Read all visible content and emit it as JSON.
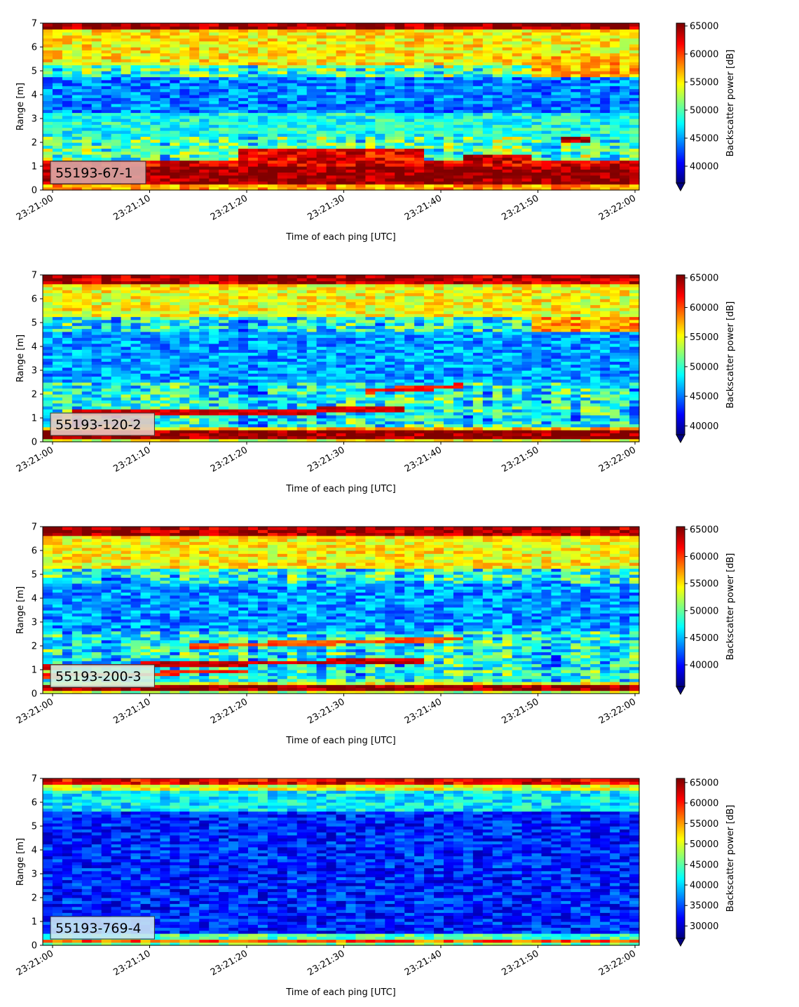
{
  "chart_data": [
    {
      "type": "heatmap",
      "x_ticks": [
        "23:21:00",
        "23:21:10",
        "23:21:20",
        "23:21:30",
        "23:21:40",
        "23:21:50",
        "23:22:00"
      ],
      "y_ticks": [
        "0",
        "1",
        "2",
        "3",
        "4",
        "5",
        "6",
        "7"
      ],
      "xlabel": "Time of each ping [UTC]",
      "ylabel": "Range [m]",
      "ylim": [
        0,
        7
      ],
      "annotation": "55193-67-1",
      "annotation_bg": "#dba7a5",
      "colorbar": {
        "label": "Backscatter power [dB]",
        "ticks": [
          "40000",
          "45000",
          "50000",
          "55000",
          "60000",
          "65000"
        ],
        "min": 37000,
        "max": 65500,
        "colormap": "jet",
        "extend": "min"
      },
      "features": [
        {
          "kind": "band",
          "y0": 0.0,
          "y1": 0.25,
          "t0": 0,
          "t1": 61,
          "v": 0.72
        },
        {
          "kind": "band",
          "y0": 0.25,
          "y1": 1.05,
          "t0": 0,
          "t1": 61,
          "v": 0.99
        },
        {
          "kind": "band",
          "y0": 1.05,
          "y1": 1.3,
          "t0": 0,
          "t1": 61,
          "v": 0.9
        },
        {
          "kind": "band",
          "y0": 1.3,
          "y1": 1.75,
          "t0": 20,
          "t1": 38,
          "v": 0.88
        },
        {
          "kind": "band",
          "y0": 1.25,
          "y1": 1.5,
          "t0": 43,
          "t1": 49,
          "v": 0.95
        },
        {
          "kind": "band",
          "y0": 2.0,
          "y1": 2.35,
          "t0": 53,
          "t1": 55,
          "v": 0.95
        },
        {
          "kind": "band",
          "y0": 6.7,
          "y1": 7.0,
          "t0": 0,
          "t1": 61,
          "v": 0.97
        },
        {
          "kind": "band",
          "y0": 5.2,
          "y1": 6.7,
          "t0": 0,
          "t1": 61,
          "v": 0.64
        },
        {
          "kind": "band",
          "y0": 4.2,
          "y1": 5.6,
          "t0": 50,
          "t1": 61,
          "v": 0.7
        },
        {
          "kind": "band",
          "y0": 3.2,
          "y1": 4.8,
          "t0": 0,
          "t1": 61,
          "v": 0.25
        },
        {
          "kind": "band",
          "y0": 2.3,
          "y1": 3.2,
          "t0": 0,
          "t1": 61,
          "v": 0.4
        }
      ],
      "base": 0.45
    },
    {
      "type": "heatmap",
      "x_ticks": [
        "23:21:00",
        "23:21:10",
        "23:21:20",
        "23:21:30",
        "23:21:40",
        "23:21:50",
        "23:22:00"
      ],
      "y_ticks": [
        "0",
        "1",
        "2",
        "3",
        "4",
        "5",
        "6",
        "7"
      ],
      "xlabel": "Time of each ping [UTC]",
      "ylabel": "Range [m]",
      "ylim": [
        0,
        7
      ],
      "annotation": "55193-120-2",
      "annotation_bg": "#e7c6bf",
      "colorbar": {
        "label": "Backscatter power [dB]",
        "ticks": [
          "40000",
          "45000",
          "50000",
          "55000",
          "60000",
          "65000"
        ],
        "min": 38500,
        "max": 65500,
        "colormap": "jet",
        "extend": "min"
      },
      "features": [
        {
          "kind": "band",
          "y0": 0.0,
          "y1": 0.1,
          "t0": 0,
          "t1": 61,
          "v": 0.6
        },
        {
          "kind": "band",
          "y0": 0.1,
          "y1": 0.45,
          "t0": 0,
          "t1": 61,
          "v": 0.99
        },
        {
          "kind": "band",
          "y0": 0.45,
          "y1": 0.65,
          "t0": 0,
          "t1": 61,
          "v": 0.68
        },
        {
          "kind": "line",
          "y_start": 1.2,
          "y_end": 1.35,
          "t0": 3,
          "t1": 36,
          "thick": 0.25,
          "v": 0.92
        },
        {
          "kind": "line",
          "y_start": 2.15,
          "y_end": 2.35,
          "t0": 33,
          "t1": 42,
          "thick": 0.2,
          "v": 0.85
        },
        {
          "kind": "band",
          "y0": 6.6,
          "y1": 7.0,
          "t0": 0,
          "t1": 61,
          "v": 0.95
        },
        {
          "kind": "band",
          "y0": 5.3,
          "y1": 6.6,
          "t0": 0,
          "t1": 61,
          "v": 0.62
        },
        {
          "kind": "band",
          "y0": 4.6,
          "y1": 5.3,
          "t0": 50,
          "t1": 61,
          "v": 0.72
        },
        {
          "kind": "band",
          "y0": 2.5,
          "y1": 4.6,
          "t0": 0,
          "t1": 61,
          "v": 0.28
        }
      ],
      "base": 0.38
    },
    {
      "type": "heatmap",
      "x_ticks": [
        "23:21:00",
        "23:21:10",
        "23:21:20",
        "23:21:30",
        "23:21:40",
        "23:21:50",
        "23:22:00"
      ],
      "y_ticks": [
        "0",
        "1",
        "2",
        "3",
        "4",
        "5",
        "6",
        "7"
      ],
      "xlabel": "Time of each ping [UTC]",
      "ylabel": "Range [m]",
      "ylim": [
        0,
        7
      ],
      "annotation": "55193-200-3",
      "annotation_bg": "#d9efe0",
      "colorbar": {
        "label": "Backscatter power [dB]",
        "ticks": [
          "40000",
          "45000",
          "50000",
          "55000",
          "60000",
          "65000"
        ],
        "min": 36000,
        "max": 65500,
        "colormap": "jet",
        "extend": "min"
      },
      "features": [
        {
          "kind": "band",
          "y0": 0.0,
          "y1": 0.1,
          "t0": 0,
          "t1": 61,
          "v": 0.55
        },
        {
          "kind": "band",
          "y0": 0.1,
          "y1": 0.35,
          "t0": 0,
          "t1": 61,
          "v": 0.99
        },
        {
          "kind": "band",
          "y0": 0.35,
          "y1": 0.55,
          "t0": 0,
          "t1": 61,
          "v": 0.6
        },
        {
          "kind": "line",
          "y_start": 1.15,
          "y_end": 1.4,
          "t0": 0,
          "t1": 38,
          "thick": 0.2,
          "v": 0.93
        },
        {
          "kind": "line",
          "y_start": 0.75,
          "y_end": 0.95,
          "t0": 0,
          "t1": 20,
          "thick": 0.15,
          "v": 0.85
        },
        {
          "kind": "line",
          "y_start": 2.0,
          "y_end": 2.3,
          "t0": 15,
          "t1": 42,
          "thick": 0.2,
          "v": 0.8
        },
        {
          "kind": "band",
          "y0": 6.6,
          "y1": 7.0,
          "t0": 0,
          "t1": 61,
          "v": 0.95
        },
        {
          "kind": "band",
          "y0": 5.3,
          "y1": 6.6,
          "t0": 0,
          "t1": 61,
          "v": 0.63
        },
        {
          "kind": "band",
          "y0": 2.6,
          "y1": 4.6,
          "t0": 0,
          "t1": 61,
          "v": 0.27
        }
      ],
      "base": 0.38
    },
    {
      "type": "heatmap",
      "x_ticks": [
        "23:21:00",
        "23:21:10",
        "23:21:20",
        "23:21:30",
        "23:21:40",
        "23:21:50",
        "23:22:00"
      ],
      "y_ticks": [
        "0",
        "1",
        "2",
        "3",
        "4",
        "5",
        "6",
        "7"
      ],
      "xlabel": "Time of each ping [UTC]",
      "ylabel": "Range [m]",
      "ylim": [
        0,
        7
      ],
      "annotation": "55193-769-4",
      "annotation_bg": "#c9e6f4",
      "colorbar": {
        "label": "Backscatter power [dB]",
        "ticks": [
          "30000",
          "35000",
          "40000",
          "45000",
          "50000",
          "55000",
          "60000",
          "65000"
        ],
        "min": 27000,
        "max": 66000,
        "colormap": "jet",
        "extend": "min"
      },
      "features": [
        {
          "kind": "band",
          "y0": 0.0,
          "y1": 0.15,
          "t0": 0,
          "t1": 61,
          "v": 0.5
        },
        {
          "kind": "band",
          "y0": 0.15,
          "y1": 0.3,
          "t0": 0,
          "t1": 61,
          "v": 0.78
        },
        {
          "kind": "band",
          "y0": 0.3,
          "y1": 0.5,
          "t0": 0,
          "t1": 61,
          "v": 0.45
        },
        {
          "kind": "line",
          "y_start": 1.1,
          "y_end": 1.25,
          "t0": 18,
          "t1": 38,
          "thick": 0.15,
          "v": 0.7
        },
        {
          "kind": "band",
          "y0": 6.8,
          "y1": 7.0,
          "t0": 0,
          "t1": 61,
          "v": 0.88
        },
        {
          "kind": "band",
          "y0": 6.5,
          "y1": 6.8,
          "t0": 0,
          "t1": 61,
          "v": 0.6
        },
        {
          "kind": "band",
          "y0": 5.6,
          "y1": 6.5,
          "t0": 0,
          "t1": 61,
          "v": 0.36
        },
        {
          "kind": "band",
          "y0": 0.5,
          "y1": 5.6,
          "t0": 0,
          "t1": 61,
          "v": 0.16
        }
      ],
      "base": 0.2
    }
  ]
}
